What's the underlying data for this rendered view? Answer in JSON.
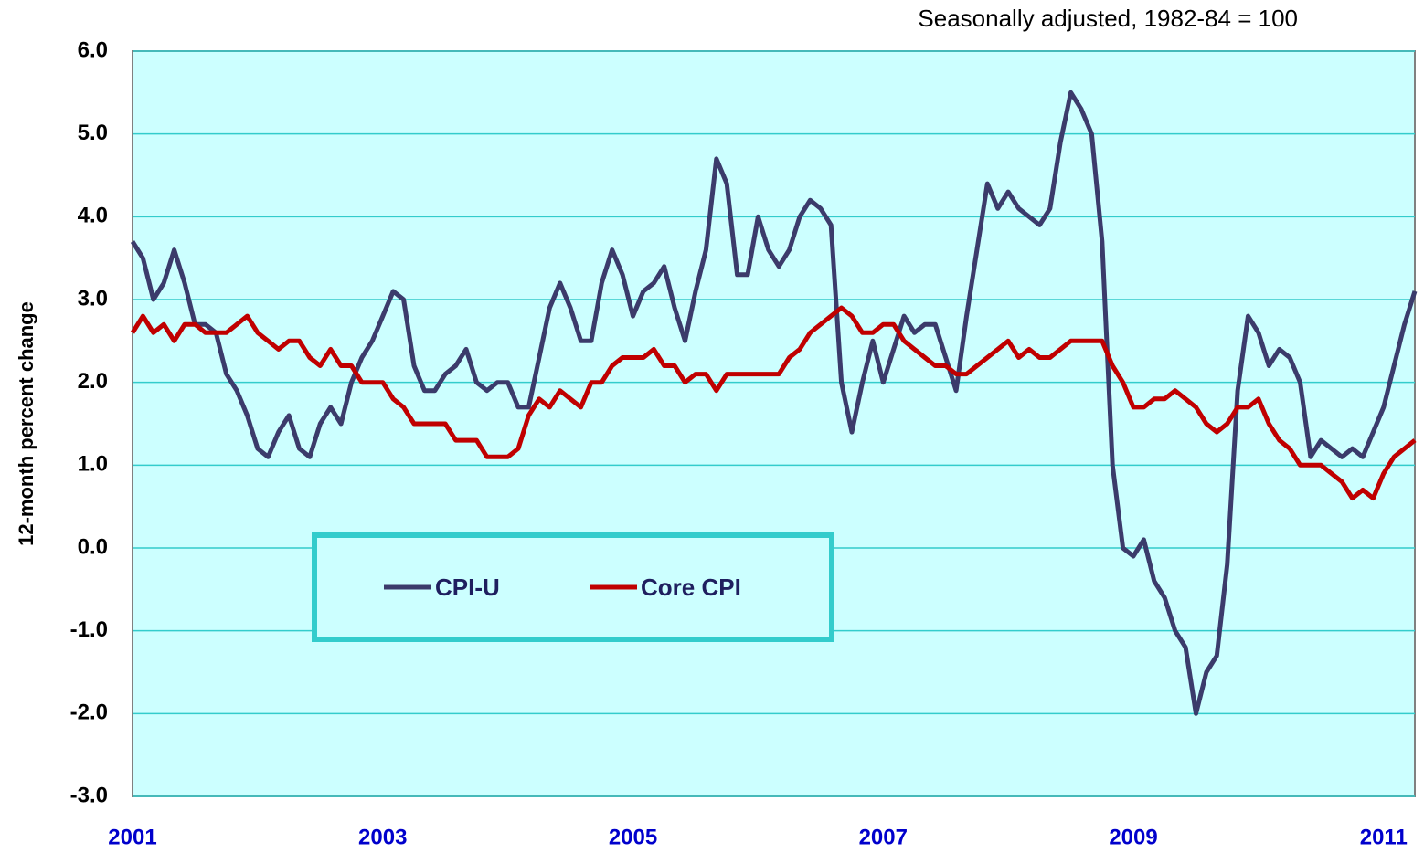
{
  "chart_data": {
    "type": "line",
    "subtitle": "Seasonally adjusted, 1982-84 = 100",
    "y_label": "12-month percent change",
    "categories": [
      "2001",
      null,
      null,
      null,
      null,
      null,
      null,
      null,
      null,
      null,
      null,
      null,
      null,
      null,
      null,
      null,
      null,
      null,
      null,
      null,
      null,
      null,
      null,
      null,
      "2003",
      null,
      null,
      null,
      null,
      null,
      null,
      null,
      null,
      null,
      null,
      null,
      null,
      null,
      null,
      null,
      null,
      null,
      null,
      null,
      null,
      null,
      null,
      null,
      "2005",
      null,
      null,
      null,
      null,
      null,
      null,
      null,
      null,
      null,
      null,
      null,
      null,
      null,
      null,
      null,
      null,
      null,
      null,
      null,
      null,
      null,
      null,
      null,
      "2007",
      null,
      null,
      null,
      null,
      null,
      null,
      null,
      null,
      null,
      null,
      null,
      null,
      null,
      null,
      null,
      null,
      null,
      null,
      null,
      null,
      null,
      null,
      null,
      "2009",
      null,
      null,
      null,
      null,
      null,
      null,
      null,
      null,
      null,
      null,
      null,
      null,
      null,
      null,
      null,
      null,
      null,
      null,
      null,
      null,
      null,
      null,
      null,
      "2011",
      null,
      null,
      null
    ],
    "series": [
      {
        "name": "CPI-U",
        "color": "#3b3b6b",
        "values": [
          3.7,
          3.5,
          3.0,
          3.2,
          3.6,
          3.2,
          2.7,
          2.7,
          2.6,
          2.1,
          1.9,
          1.6,
          1.2,
          1.1,
          1.4,
          1.6,
          1.2,
          1.1,
          1.5,
          1.7,
          1.5,
          2.0,
          2.3,
          2.5,
          2.8,
          3.1,
          3.0,
          2.2,
          1.9,
          1.9,
          2.1,
          2.2,
          2.4,
          2.0,
          1.9,
          2.0,
          2.0,
          1.7,
          1.7,
          2.3,
          2.9,
          3.2,
          2.9,
          2.5,
          2.5,
          3.2,
          3.6,
          3.3,
          2.8,
          3.1,
          3.2,
          3.4,
          2.9,
          2.5,
          3.1,
          3.6,
          4.7,
          4.4,
          3.3,
          3.3,
          4.0,
          3.6,
          3.4,
          3.6,
          4.0,
          4.2,
          4.1,
          3.9,
          2.0,
          1.4,
          2.0,
          2.5,
          2.0,
          2.4,
          2.8,
          2.6,
          2.7,
          2.7,
          2.3,
          1.9,
          2.8,
          3.6,
          4.4,
          4.1,
          4.3,
          4.1,
          4.0,
          3.9,
          4.1,
          4.9,
          5.5,
          5.3,
          5.0,
          3.7,
          1.0,
          0.0,
          -0.1,
          0.1,
          -0.4,
          -0.6,
          -1.0,
          -1.2,
          -2.0,
          -1.5,
          -1.3,
          -0.2,
          1.9,
          2.8,
          2.6,
          2.2,
          2.4,
          2.3,
          2.0,
          1.1,
          1.3,
          1.2,
          1.1,
          1.2,
          1.1,
          1.4,
          1.7,
          2.2,
          2.7,
          3.1
        ]
      },
      {
        "name": "Core CPI",
        "color": "#c00000",
        "values": [
          2.6,
          2.8,
          2.6,
          2.7,
          2.5,
          2.7,
          2.7,
          2.6,
          2.6,
          2.6,
          2.7,
          2.8,
          2.6,
          2.5,
          2.4,
          2.5,
          2.5,
          2.3,
          2.2,
          2.4,
          2.2,
          2.2,
          2.0,
          2.0,
          2.0,
          1.8,
          1.7,
          1.5,
          1.5,
          1.5,
          1.5,
          1.3,
          1.3,
          1.3,
          1.1,
          1.1,
          1.1,
          1.2,
          1.6,
          1.8,
          1.7,
          1.9,
          1.8,
          1.7,
          2.0,
          2.0,
          2.2,
          2.3,
          2.3,
          2.3,
          2.4,
          2.2,
          2.2,
          2.0,
          2.1,
          2.1,
          1.9,
          2.1,
          2.1,
          2.1,
          2.1,
          2.1,
          2.1,
          2.3,
          2.4,
          2.6,
          2.7,
          2.8,
          2.9,
          2.8,
          2.6,
          2.6,
          2.7,
          2.7,
          2.5,
          2.4,
          2.3,
          2.2,
          2.2,
          2.1,
          2.1,
          2.2,
          2.3,
          2.4,
          2.5,
          2.3,
          2.4,
          2.3,
          2.3,
          2.4,
          2.5,
          2.5,
          2.5,
          2.5,
          2.2,
          2.0,
          1.7,
          1.7,
          1.8,
          1.8,
          1.9,
          1.8,
          1.7,
          1.5,
          1.4,
          1.5,
          1.7,
          1.7,
          1.8,
          1.5,
          1.3,
          1.2,
          1.0,
          1.0,
          1.0,
          0.9,
          0.8,
          0.6,
          0.7,
          0.6,
          0.9,
          1.1,
          1.2,
          1.3
        ]
      }
    ],
    "ylim": [
      -3,
      6
    ],
    "yticks": [
      {
        "value": -3,
        "label": "-3.0"
      },
      {
        "value": -2,
        "label": "-2.0"
      },
      {
        "value": -1,
        "label": "-1.0"
      },
      {
        "value": 0,
        "label": "0.0"
      },
      {
        "value": 1,
        "label": "1.0"
      },
      {
        "value": 2,
        "label": "2.0"
      },
      {
        "value": 3,
        "label": "3.0"
      },
      {
        "value": 4,
        "label": "4.0"
      },
      {
        "value": 5,
        "label": "5.0"
      },
      {
        "value": 6,
        "label": "6.0"
      }
    ],
    "grid": true
  }
}
